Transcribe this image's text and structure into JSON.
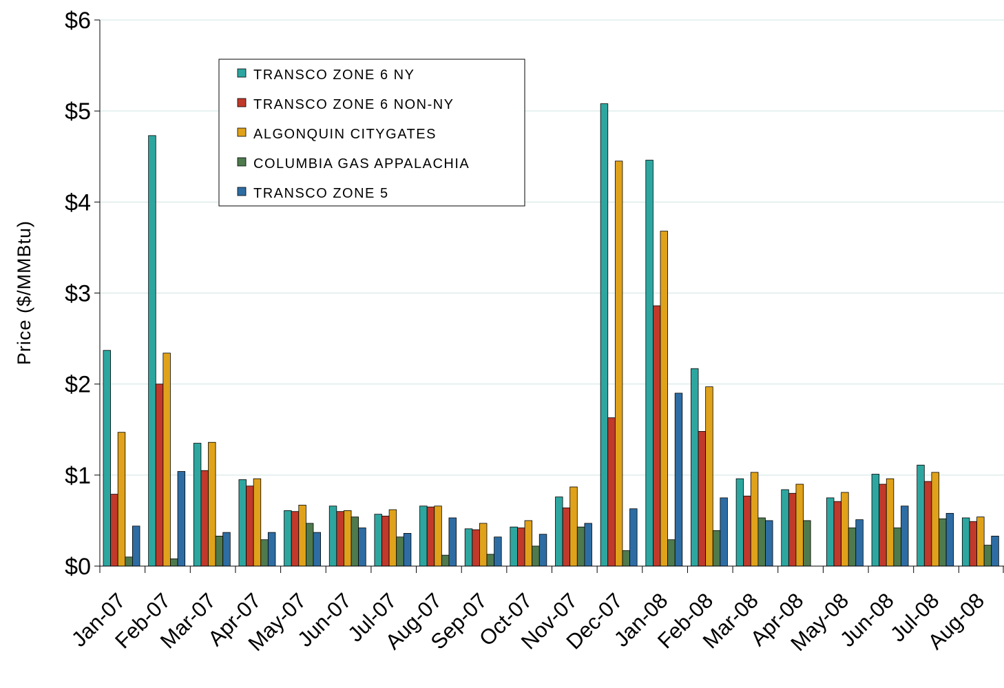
{
  "chart_data": {
    "type": "bar",
    "title": "",
    "xlabel": "",
    "ylabel": "Price  ($/MMBtu)",
    "ylim": [
      0,
      6
    ],
    "y_ticks": [
      "$0",
      "$1",
      "$2",
      "$3",
      "$4",
      "$5",
      "$6"
    ],
    "grid": "horizontal",
    "legend_position": "top-left",
    "categories": [
      "Jan-07",
      "Feb-07",
      "Mar-07",
      "Apr-07",
      "May-07",
      "Jun-07",
      "Jul-07",
      "Aug-07",
      "Sep-07",
      "Oct-07",
      "Nov-07",
      "Dec-07",
      "Jan-08",
      "Feb-08",
      "Mar-08",
      "Apr-08",
      "May-08",
      "Jun-08",
      "Jul-08",
      "Aug-08"
    ],
    "series": [
      {
        "name": "TRANSCO ZONE 6 NY",
        "color": "#2EA6A0",
        "values": [
          2.37,
          4.73,
          1.35,
          0.95,
          0.61,
          0.66,
          0.57,
          0.66,
          0.41,
          0.43,
          0.76,
          5.08,
          4.46,
          2.17,
          0.96,
          0.84,
          0.75,
          1.01,
          1.11,
          0.53
        ]
      },
      {
        "name": "TRANSCO ZONE 6 NON-NY",
        "color": "#C0392B",
        "values": [
          0.79,
          2.0,
          1.05,
          0.88,
          0.6,
          0.6,
          0.55,
          0.65,
          0.4,
          0.42,
          0.64,
          1.63,
          2.86,
          1.48,
          0.77,
          0.8,
          0.71,
          0.9,
          0.93,
          0.49
        ]
      },
      {
        "name": "ALGONQUIN CITYGATES",
        "color": "#E0A21A",
        "values": [
          1.47,
          2.34,
          1.36,
          0.96,
          0.67,
          0.61,
          0.62,
          0.66,
          0.47,
          0.5,
          0.87,
          4.45,
          3.68,
          1.97,
          1.03,
          0.9,
          0.81,
          0.96,
          1.03,
          0.54
        ]
      },
      {
        "name": "COLUMBIA GAS APPALACHIA",
        "color": "#4E7A4E",
        "values": [
          0.1,
          0.08,
          0.33,
          0.29,
          0.47,
          0.54,
          0.32,
          0.12,
          0.13,
          0.22,
          0.43,
          0.17,
          0.29,
          0.39,
          0.53,
          0.5,
          0.42,
          0.42,
          0.52,
          0.23
        ]
      },
      {
        "name": "TRANSCO ZONE 5",
        "color": "#2E6DA4",
        "values": [
          0.44,
          1.04,
          0.37,
          0.37,
          0.37,
          0.42,
          0.36,
          0.53,
          0.32,
          0.35,
          0.47,
          0.63,
          1.9,
          0.75,
          0.5,
          null,
          0.51,
          0.66,
          0.58,
          0.33
        ]
      }
    ]
  }
}
